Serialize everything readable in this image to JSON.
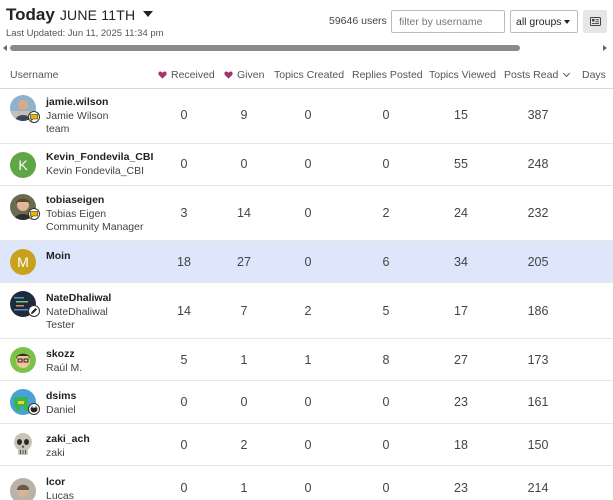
{
  "header": {
    "today": "Today",
    "date": "JUNE 11TH",
    "last_updated": "Last Updated: Jun 11, 2025 11:34 pm",
    "users_count": "59646 users",
    "filter_placeholder": "filter by username",
    "group_select": "all groups"
  },
  "columns": {
    "username": "Username",
    "received": "Received",
    "given": "Given",
    "topics_created": "Topics Created",
    "replies_posted": "Replies Posted",
    "topics_viewed": "Topics Viewed",
    "posts_read": "Posts Read",
    "days": "Days"
  },
  "colors": {
    "heart": "#a0346e",
    "highlight_row": "#dde6fb",
    "avatar_K": "#5fa746",
    "avatar_M": "#c9a21b"
  },
  "rows": [
    {
      "username": "jamie.wilson",
      "name": "Jamie Wilson",
      "title": "team",
      "received": "0",
      "given": "9",
      "topics_created": "0",
      "replies_posted": "0",
      "topics_viewed": "15",
      "posts_read": "387"
    },
    {
      "username": "Kevin_Fondevila_CBI",
      "name": "Kevin Fondevila_CBI",
      "title": "",
      "avatar_letter": "K",
      "received": "0",
      "given": "0",
      "topics_created": "0",
      "replies_posted": "0",
      "topics_viewed": "55",
      "posts_read": "248"
    },
    {
      "username": "tobiaseigen",
      "name": "Tobias Eigen",
      "title": "Community Manager",
      "received": "3",
      "given": "14",
      "topics_created": "0",
      "replies_posted": "2",
      "topics_viewed": "24",
      "posts_read": "232"
    },
    {
      "username": "Moin",
      "name": "",
      "title": "",
      "avatar_letter": "M",
      "received": "18",
      "given": "27",
      "topics_created": "0",
      "replies_posted": "6",
      "topics_viewed": "34",
      "posts_read": "205"
    },
    {
      "username": "NateDhaliwal",
      "name": "NateDhaliwal",
      "title": "Tester",
      "received": "14",
      "given": "7",
      "topics_created": "2",
      "replies_posted": "5",
      "topics_viewed": "17",
      "posts_read": "186"
    },
    {
      "username": "skozz",
      "name": "Raúl M.",
      "title": "",
      "received": "5",
      "given": "1",
      "topics_created": "1",
      "replies_posted": "8",
      "topics_viewed": "27",
      "posts_read": "173"
    },
    {
      "username": "dsims",
      "name": "Daniel",
      "title": "",
      "received": "0",
      "given": "0",
      "topics_created": "0",
      "replies_posted": "0",
      "topics_viewed": "23",
      "posts_read": "161"
    },
    {
      "username": "zaki_ach",
      "name": "zaki",
      "title": "",
      "received": "0",
      "given": "2",
      "topics_created": "0",
      "replies_posted": "0",
      "topics_viewed": "18",
      "posts_read": "150"
    },
    {
      "username": "lcor",
      "name": "Lucas",
      "title": "",
      "received": "0",
      "given": "1",
      "topics_created": "0",
      "replies_posted": "0",
      "topics_viewed": "23",
      "posts_read": "214"
    }
  ]
}
